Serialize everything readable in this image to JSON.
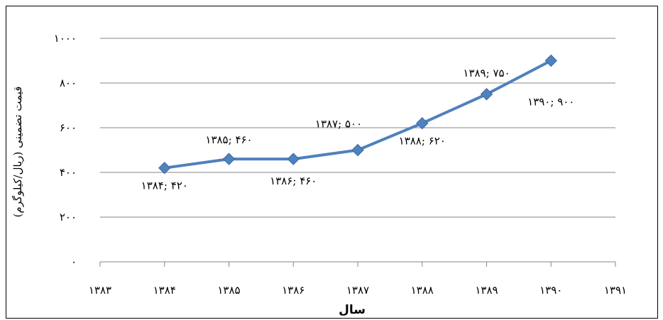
{
  "chart_data": {
    "type": "line",
    "xlabel": "سال",
    "ylabel": "قیمت تضمینی (ریال/کیلوگرم)",
    "x": [
      1384,
      1385,
      1386,
      1387,
      1388,
      1389,
      1390
    ],
    "series": [
      {
        "values": [
          420,
          460,
          460,
          500,
          620,
          750,
          900
        ]
      }
    ],
    "xlim": [
      1383,
      1391
    ],
    "ylim": [
      0,
      1000
    ],
    "x_ticks": [
      1383,
      1384,
      1385,
      1386,
      1387,
      1388,
      1389,
      1390,
      1391
    ],
    "x_tick_labels": [
      "۱۳۸۳",
      "۱۳۸۴",
      "۱۳۸۵",
      "۱۳۸۶",
      "۱۳۸۷",
      "۱۳۸۸",
      "۱۳۸۹",
      "۱۳۹۰",
      "۱۳۹۱"
    ],
    "y_ticks": [
      0,
      200,
      400,
      600,
      800,
      1000
    ],
    "y_tick_labels": [
      "۰",
      "۲۰۰",
      "۴۰۰",
      "۶۰۰",
      "۸۰۰",
      "۱۰۰۰"
    ],
    "data_labels": [
      "۱۳۸۴; ۴۲۰",
      "۱۳۸۵; ۴۶۰",
      "۱۳۸۶; ۴۶۰",
      "۱۳۸۷; ۵۰۰",
      "۱۳۸۸; ۶۲۰",
      "۱۳۸۹; ۷۵۰",
      "۱۳۹۰; ۹۰۰"
    ],
    "grid": true,
    "legend": "none",
    "line_color": "#4f81bd"
  }
}
